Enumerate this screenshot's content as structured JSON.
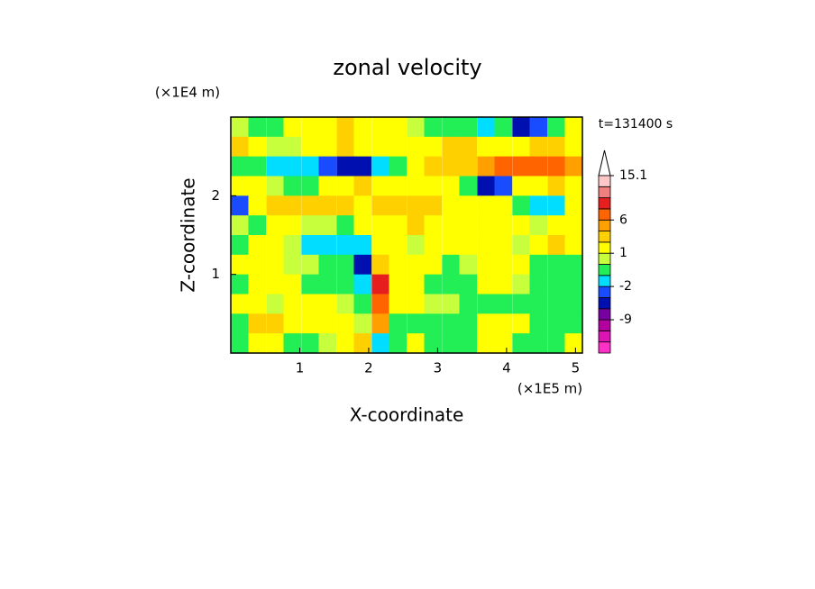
{
  "chart_data": {
    "type": "contour",
    "title": "zonal velocity",
    "x_label": "X-coordinate",
    "y_label": "Z-coordinate",
    "x_scale_label": "(×1E5 m)",
    "y_scale_label": "(×1E4 m)",
    "time_label": "t=131400 s",
    "xlim": [
      0,
      5.1
    ],
    "ylim": [
      0,
      3
    ],
    "xticks": [
      1,
      2,
      3,
      4,
      5
    ],
    "yticks": [
      1,
      2
    ],
    "x": [
      0.13,
      0.38,
      0.64,
      0.89,
      1.15,
      1.4,
      1.66,
      1.91,
      2.17,
      2.42,
      2.68,
      2.93,
      3.19,
      3.44,
      3.7,
      3.95,
      4.21,
      4.46,
      4.72,
      4.97
    ],
    "y": [
      2.875,
      2.625,
      2.375,
      2.125,
      1.875,
      1.625,
      1.375,
      1.125,
      0.875,
      0.625,
      0.375,
      0.125
    ],
    "field": [
      [
        0.5,
        -0.5,
        -0.5,
        1.5,
        1.5,
        1.5,
        3,
        1.5,
        1.5,
        1.5,
        0.5,
        -0.5,
        -0.5,
        -0.5,
        -1.5,
        -0.5,
        -5,
        -3,
        -0.5,
        1.5
      ],
      [
        3,
        1.5,
        0.5,
        0.5,
        1.5,
        1.5,
        3,
        1.5,
        1.5,
        1.5,
        1.5,
        1.5,
        3,
        3,
        1.5,
        1.5,
        1.5,
        3,
        3,
        1.5
      ],
      [
        -0.5,
        -0.5,
        -1.5,
        -1.5,
        -1.5,
        -3,
        -5,
        -5,
        -1.5,
        -0.5,
        1.5,
        3,
        3,
        3,
        5,
        7,
        7,
        7,
        7,
        5
      ],
      [
        1.5,
        1.5,
        0.5,
        -0.5,
        -0.5,
        1.5,
        1.5,
        3,
        1.5,
        1.5,
        1.5,
        1.5,
        1.5,
        -0.5,
        -5,
        -3,
        1.5,
        1.5,
        3,
        1.5
      ],
      [
        -3,
        1.5,
        3,
        3,
        3,
        3,
        3,
        1.5,
        3,
        3,
        3,
        3,
        1.5,
        1.5,
        1.5,
        1.5,
        -0.5,
        -1.5,
        -1.5,
        1.5
      ],
      [
        0.5,
        -0.5,
        1.5,
        1.5,
        0.5,
        0.5,
        -0.5,
        1.5,
        1.5,
        1.5,
        3,
        1.5,
        1.5,
        1.5,
        1.5,
        1.5,
        1.5,
        0.5,
        1.5,
        1.5
      ],
      [
        -0.5,
        1.5,
        1.5,
        0.5,
        -1.5,
        -1.5,
        -1.5,
        -1.5,
        1.5,
        1.5,
        0.5,
        1.5,
        1.5,
        1.5,
        1.5,
        1.5,
        0.5,
        1.5,
        3,
        1.5
      ],
      [
        1.5,
        1.5,
        1.5,
        0.5,
        0.5,
        -0.5,
        -0.5,
        -5,
        3,
        1.5,
        1.5,
        1.5,
        -0.5,
        0.5,
        1.5,
        1.5,
        1.5,
        -0.5,
        -0.5,
        -0.5
      ],
      [
        -0.5,
        1.5,
        1.5,
        1.5,
        -0.5,
        -0.5,
        -0.5,
        -1.5,
        9,
        1.5,
        1.5,
        -0.5,
        -0.5,
        -0.5,
        1.5,
        1.5,
        0.5,
        -0.5,
        -0.5,
        -0.5
      ],
      [
        1.5,
        1.5,
        0.5,
        1.5,
        1.5,
        1.5,
        0.5,
        -0.5,
        7,
        1.5,
        1.5,
        0.5,
        0.5,
        -0.5,
        -0.5,
        -0.5,
        -0.5,
        -0.5,
        -0.5,
        -0.5
      ],
      [
        -0.5,
        3,
        3,
        1.5,
        1.5,
        1.5,
        1.5,
        0.5,
        5,
        -0.5,
        -0.5,
        -0.5,
        -0.5,
        -0.5,
        1.5,
        1.5,
        1.5,
        -0.5,
        -0.5,
        -0.5
      ],
      [
        -0.5,
        1.5,
        1.5,
        -0.5,
        -0.5,
        0.5,
        1.5,
        3,
        -1.5,
        -0.5,
        1.5,
        -0.5,
        -0.5,
        -0.5,
        1.5,
        1.5,
        -0.5,
        -0.5,
        -0.5,
        1.5
      ]
    ],
    "colorbar": {
      "edges": [
        -18,
        -15,
        -12,
        -9,
        -6,
        -4,
        -2,
        -1,
        0,
        1,
        2,
        4,
        6,
        8,
        10,
        12,
        15.1
      ],
      "colors": [
        "#ff30c8",
        "#dc14b4",
        "#b400a0",
        "#7800a0",
        "#0010b0",
        "#1a4cff",
        "#00ddff",
        "#22ee55",
        "#c8ff3c",
        "#ffff00",
        "#ffd000",
        "#ffa000",
        "#ff6400",
        "#e61e1e",
        "#f08080",
        "#ffc8c8"
      ],
      "ticks": [
        15.1,
        6,
        1,
        -2,
        -9
      ]
    }
  }
}
